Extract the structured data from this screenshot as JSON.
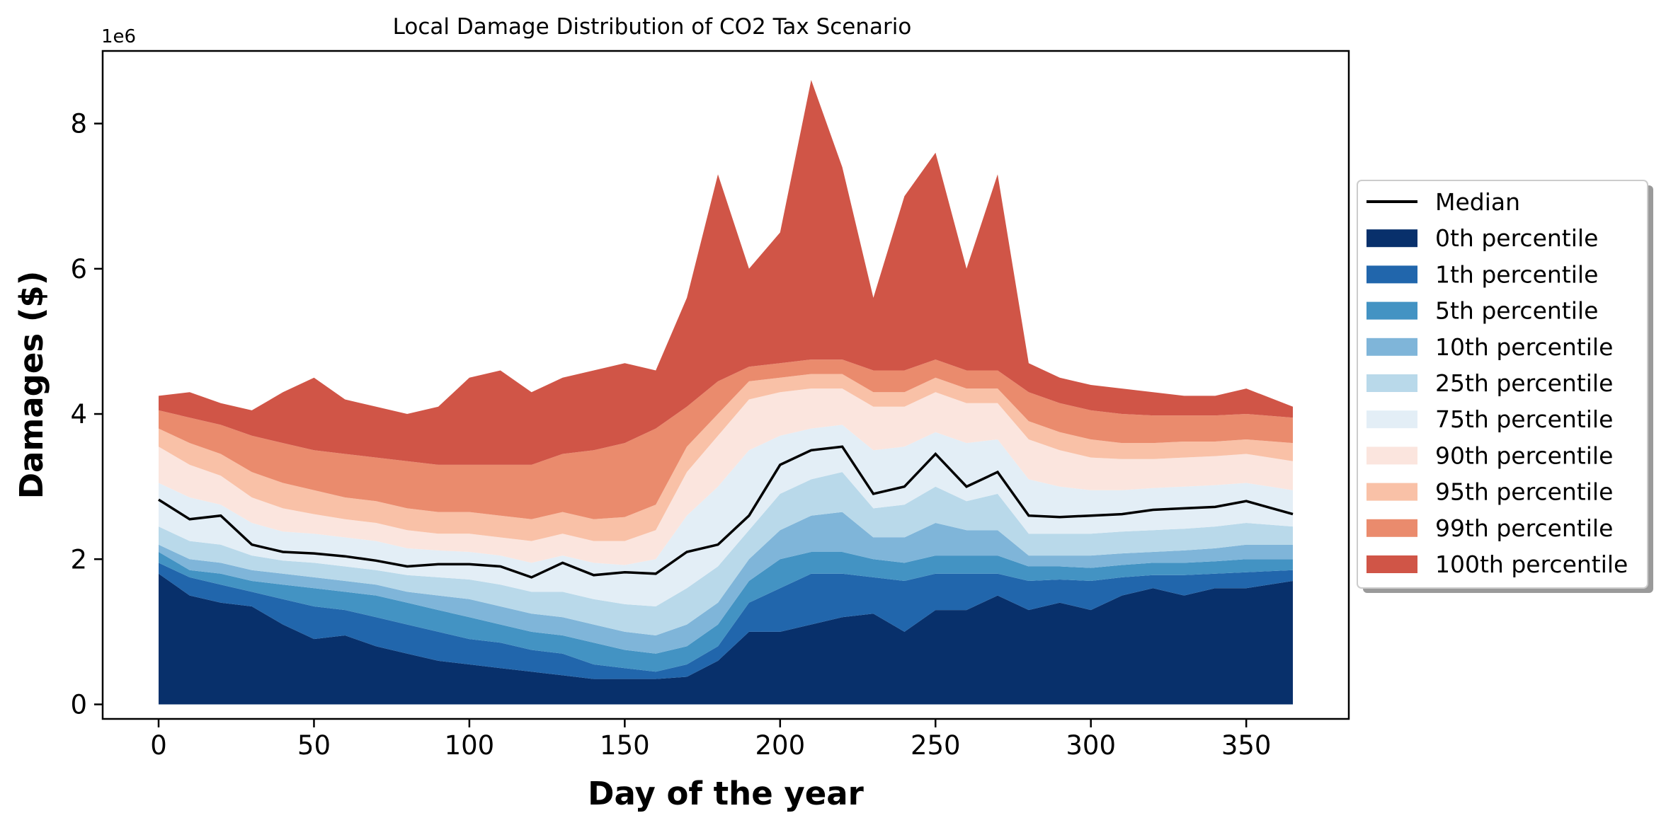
{
  "chart_data": {
    "type": "area",
    "title": "Local Damage Distribution of CO2 Tax Scenario",
    "xlabel": "Day of the year",
    "ylabel": "Damages ($)",
    "y_offset_label": "1e6",
    "xlim": [
      -18,
      383
    ],
    "ylim": [
      -0.2,
      9.0
    ],
    "xticks": [
      0,
      50,
      100,
      150,
      200,
      250,
      300,
      350
    ],
    "yticks": [
      0,
      2,
      4,
      6,
      8
    ],
    "grid": false,
    "legend_position": "outside-right",
    "x": [
      0,
      10,
      20,
      30,
      40,
      50,
      60,
      70,
      80,
      90,
      100,
      110,
      120,
      130,
      140,
      150,
      160,
      170,
      180,
      190,
      200,
      210,
      220,
      230,
      240,
      250,
      260,
      270,
      280,
      290,
      300,
      310,
      320,
      330,
      340,
      350,
      365
    ],
    "median": {
      "name": "Median",
      "color": "#000000",
      "values": [
        2.82,
        2.55,
        2.6,
        2.2,
        2.1,
        2.08,
        2.04,
        1.98,
        1.9,
        1.93,
        1.93,
        1.9,
        1.75,
        1.95,
        1.78,
        1.82,
        1.8,
        2.1,
        2.2,
        2.6,
        3.3,
        3.5,
        3.55,
        2.9,
        3.0,
        3.45,
        3.0,
        3.2,
        2.6,
        2.58,
        2.6,
        2.62,
        2.68,
        2.7,
        2.72,
        2.8,
        2.62
      ]
    },
    "series": [
      {
        "name": "0th percentile",
        "color": "#08306b",
        "values": [
          1.8,
          1.5,
          1.4,
          1.35,
          1.1,
          0.9,
          0.95,
          0.8,
          0.7,
          0.6,
          0.55,
          0.5,
          0.45,
          0.4,
          0.35,
          0.35,
          0.35,
          0.38,
          0.6,
          1.0,
          1.0,
          1.1,
          1.2,
          1.25,
          1.0,
          1.3,
          1.3,
          1.5,
          1.3,
          1.4,
          1.3,
          1.5,
          1.6,
          1.5,
          1.6,
          1.6,
          1.7
        ]
      },
      {
        "name": "1th percentile",
        "color": "#2166ac",
        "values": [
          1.95,
          1.75,
          1.65,
          1.55,
          1.45,
          1.35,
          1.3,
          1.2,
          1.1,
          1.0,
          0.9,
          0.85,
          0.75,
          0.7,
          0.55,
          0.5,
          0.45,
          0.55,
          0.8,
          1.4,
          1.6,
          1.8,
          1.8,
          1.75,
          1.7,
          1.8,
          1.8,
          1.8,
          1.7,
          1.72,
          1.7,
          1.75,
          1.78,
          1.78,
          1.8,
          1.82,
          1.85
        ]
      },
      {
        "name": "5th percentile",
        "color": "#4393c3",
        "values": [
          2.1,
          1.85,
          1.8,
          1.7,
          1.65,
          1.6,
          1.55,
          1.5,
          1.4,
          1.3,
          1.2,
          1.1,
          1.0,
          0.95,
          0.85,
          0.75,
          0.7,
          0.8,
          1.1,
          1.7,
          2.0,
          2.1,
          2.1,
          2.0,
          1.95,
          2.05,
          2.05,
          2.05,
          1.9,
          1.9,
          1.88,
          1.92,
          1.95,
          1.95,
          1.97,
          2.0,
          2.0
        ]
      },
      {
        "name": "10th percentile",
        "color": "#7fb5d9",
        "values": [
          2.2,
          2.0,
          1.95,
          1.85,
          1.8,
          1.75,
          1.7,
          1.65,
          1.55,
          1.5,
          1.45,
          1.35,
          1.25,
          1.2,
          1.1,
          1.0,
          0.95,
          1.1,
          1.4,
          2.0,
          2.4,
          2.6,
          2.65,
          2.3,
          2.3,
          2.5,
          2.4,
          2.4,
          2.05,
          2.05,
          2.05,
          2.08,
          2.1,
          2.12,
          2.15,
          2.2,
          2.2
        ]
      },
      {
        "name": "25th percentile",
        "color": "#b9d9ea",
        "values": [
          2.45,
          2.25,
          2.2,
          2.05,
          1.98,
          1.95,
          1.9,
          1.85,
          1.78,
          1.75,
          1.72,
          1.65,
          1.55,
          1.55,
          1.45,
          1.38,
          1.35,
          1.6,
          1.9,
          2.4,
          2.9,
          3.1,
          3.2,
          2.7,
          2.75,
          3.0,
          2.8,
          2.9,
          2.35,
          2.35,
          2.35,
          2.38,
          2.4,
          2.42,
          2.45,
          2.5,
          2.45
        ]
      },
      {
        "name": "75th percentile",
        "color": "#e3eef6",
        "values": [
          3.05,
          2.85,
          2.75,
          2.5,
          2.38,
          2.35,
          2.3,
          2.25,
          2.15,
          2.12,
          2.1,
          2.05,
          1.95,
          2.05,
          1.95,
          1.92,
          2.0,
          2.6,
          3.0,
          3.5,
          3.7,
          3.8,
          3.85,
          3.5,
          3.55,
          3.75,
          3.6,
          3.65,
          3.1,
          3.0,
          2.95,
          2.95,
          2.98,
          3.0,
          3.02,
          3.05,
          2.95
        ]
      },
      {
        "name": "90th percentile",
        "color": "#fbe5de",
        "values": [
          3.55,
          3.3,
          3.15,
          2.85,
          2.7,
          2.62,
          2.55,
          2.5,
          2.4,
          2.35,
          2.35,
          2.3,
          2.25,
          2.35,
          2.25,
          2.25,
          2.4,
          3.2,
          3.7,
          4.2,
          4.3,
          4.35,
          4.35,
          4.1,
          4.1,
          4.3,
          4.15,
          4.15,
          3.65,
          3.5,
          3.4,
          3.38,
          3.38,
          3.4,
          3.42,
          3.45,
          3.35
        ]
      },
      {
        "name": "95th percentile",
        "color": "#f9c1a7",
        "values": [
          3.8,
          3.6,
          3.45,
          3.2,
          3.05,
          2.95,
          2.85,
          2.8,
          2.7,
          2.65,
          2.65,
          2.6,
          2.55,
          2.65,
          2.55,
          2.58,
          2.75,
          3.55,
          4.0,
          4.45,
          4.5,
          4.55,
          4.55,
          4.3,
          4.3,
          4.5,
          4.35,
          4.35,
          3.9,
          3.75,
          3.65,
          3.6,
          3.6,
          3.62,
          3.62,
          3.65,
          3.6
        ]
      },
      {
        "name": "99th percentile",
        "color": "#ea8b6d",
        "values": [
          4.05,
          3.95,
          3.85,
          3.7,
          3.6,
          3.5,
          3.45,
          3.4,
          3.35,
          3.3,
          3.3,
          3.3,
          3.3,
          3.45,
          3.5,
          3.6,
          3.8,
          4.1,
          4.45,
          4.65,
          4.7,
          4.75,
          4.75,
          4.6,
          4.6,
          4.75,
          4.6,
          4.6,
          4.3,
          4.15,
          4.05,
          4.0,
          3.98,
          3.98,
          3.98,
          4.0,
          3.95
        ]
      },
      {
        "name": "100th percentile",
        "color": "#d05547",
        "values": [
          4.25,
          4.3,
          4.15,
          4.05,
          4.3,
          4.5,
          4.2,
          4.1,
          4.0,
          4.1,
          4.5,
          4.6,
          4.3,
          4.5,
          4.6,
          4.7,
          4.6,
          5.6,
          7.3,
          6.0,
          6.5,
          8.6,
          7.4,
          5.6,
          7.0,
          7.6,
          6.0,
          7.3,
          4.7,
          4.5,
          4.4,
          4.35,
          4.3,
          4.25,
          4.25,
          4.35,
          4.1
        ]
      }
    ]
  }
}
